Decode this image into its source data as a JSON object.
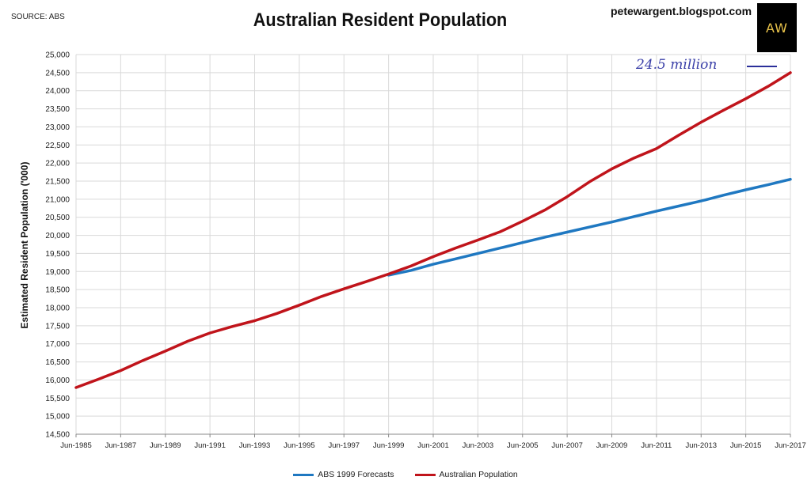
{
  "header": {
    "source": "SOURCE: ABS",
    "title": "Australian Resident Population",
    "blog": "petewargent.blogspot.com",
    "logo_text": "AW"
  },
  "annotation": "24.5 million",
  "colors": {
    "forecast": "#1f78c1",
    "population": "#c0141b",
    "grid": "#d9d9d9"
  },
  "chart_data": {
    "type": "line",
    "title": "Australian Resident Population",
    "xlabel": "",
    "ylabel": "Estimated Resident Population ('000)",
    "ylim": [
      14500,
      25000
    ],
    "y_ticks": [
      14500,
      15000,
      15500,
      16000,
      16500,
      17000,
      17500,
      18000,
      18500,
      19000,
      19500,
      20000,
      20500,
      21000,
      21500,
      22000,
      22500,
      23000,
      23500,
      24000,
      24500,
      25000
    ],
    "x_ticks": [
      "Jun-1985",
      "Jun-1987",
      "Jun-1989",
      "Jun-1991",
      "Jun-1993",
      "Jun-1995",
      "Jun-1997",
      "Jun-1999",
      "Jun-2001",
      "Jun-2003",
      "Jun-2005",
      "Jun-2007",
      "Jun-2009",
      "Jun-2011",
      "Jun-2013",
      "Jun-2015",
      "Jun-2017"
    ],
    "grid": true,
    "legend_position": "bottom",
    "series": [
      {
        "name": "ABS 1999 Forecasts",
        "color": "#1f78c1",
        "x": [
          "Jun-1999",
          "Jun-2000",
          "Jun-2001",
          "Jun-2002",
          "Jun-2003",
          "Jun-2004",
          "Jun-2005",
          "Jun-2006",
          "Jun-2007",
          "Jun-2008",
          "Jun-2009",
          "Jun-2010",
          "Jun-2011",
          "Jun-2012",
          "Jun-2013",
          "Jun-2014",
          "Jun-2015",
          "Jun-2016",
          "Jun-2017"
        ],
        "values": [
          18900,
          19030,
          19200,
          19350,
          19500,
          19650,
          19800,
          19950,
          20090,
          20230,
          20370,
          20520,
          20670,
          20810,
          20950,
          21110,
          21260,
          21400,
          21550
        ]
      },
      {
        "name": "Australian Population",
        "color": "#c0141b",
        "x": [
          "Jun-1985",
          "Jun-1986",
          "Jun-1987",
          "Jun-1988",
          "Jun-1989",
          "Jun-1990",
          "Jun-1991",
          "Jun-1992",
          "Jun-1993",
          "Jun-1994",
          "Jun-1995",
          "Jun-1996",
          "Jun-1997",
          "Jun-1998",
          "Jun-1999",
          "Jun-2000",
          "Jun-2001",
          "Jun-2002",
          "Jun-2003",
          "Jun-2004",
          "Jun-2005",
          "Jun-2006",
          "Jun-2007",
          "Jun-2008",
          "Jun-2009",
          "Jun-2010",
          "Jun-2011",
          "Jun-2012",
          "Jun-2013",
          "Jun-2014",
          "Jun-2015",
          "Jun-2016",
          "Jun-2017"
        ],
        "values": [
          15790,
          16020,
          16260,
          16540,
          16800,
          17070,
          17300,
          17480,
          17640,
          17840,
          18070,
          18310,
          18520,
          18720,
          18930,
          19150,
          19410,
          19650,
          19870,
          20100,
          20390,
          20700,
          21070,
          21480,
          21840,
          22140,
          22400,
          22770,
          23130,
          23460,
          23780,
          24120,
          24500
        ]
      }
    ]
  }
}
